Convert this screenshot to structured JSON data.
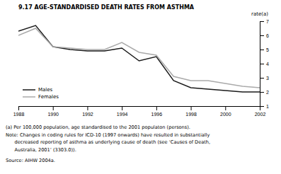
{
  "chart_data": {
    "type": "line",
    "title": "9.17   AGE-STANDARDISED DEATH RATES FROM ASTHMA",
    "y_label": "rate(a)",
    "x": [
      1988,
      1989,
      1990,
      1991,
      1992,
      1993,
      1994,
      1995,
      1996,
      1997,
      1998,
      1999,
      2000,
      2001,
      2002
    ],
    "series": [
      {
        "name": "Males",
        "color": "#1a1a1a",
        "values": [
          6.3,
          6.7,
          5.2,
          5.0,
          4.9,
          4.9,
          5.1,
          4.2,
          4.5,
          2.8,
          2.3,
          2.2,
          2.1,
          2.0,
          2.0
        ]
      },
      {
        "name": "Females",
        "color": "#aaaaaa",
        "values": [
          6.0,
          6.5,
          5.2,
          5.1,
          5.0,
          5.0,
          5.5,
          4.8,
          4.6,
          3.1,
          2.8,
          2.8,
          2.6,
          2.4,
          2.3
        ]
      }
    ],
    "xlim": [
      1988,
      2002
    ],
    "xticks": [
      1988,
      1990,
      1992,
      1994,
      1996,
      1998,
      2000,
      2002
    ],
    "ylim": [
      1,
      7
    ],
    "yticks": [
      1,
      2,
      3,
      4,
      5,
      6,
      7
    ],
    "grid": false,
    "legend": "lower left",
    "annotations": [
      "(a) Per 100,000 population, age standardised to the 2001 populaton (persons).",
      "Note: Changes in coding rules for ICD-10 (1997 onwards) have resulted in substantially",
      "      decreased reporting of asthma as underlying cause of death (see ‘Causes of Death,",
      "      Australia, 2001’ (3303.0)).",
      "Source: AIHW 2004a."
    ]
  }
}
